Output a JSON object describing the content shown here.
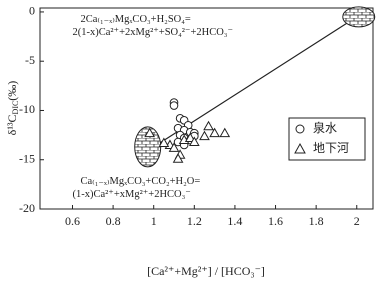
{
  "chart_data": {
    "type": "scatter",
    "xlabel": "[Ca²⁺+Mg²⁺] / [HCO₃⁻]",
    "ylabel": {
      "main": "δ¹³C",
      "sub": "DIC",
      "unit": "(‰)"
    },
    "xlim": [
      0.44,
      2.08
    ],
    "ylim": [
      -20,
      0.4
    ],
    "xticks": [
      0.6,
      0.8,
      1.0,
      1.2,
      1.4,
      1.6,
      1.8,
      2.0
    ],
    "yticks": [
      0,
      -5,
      -10,
      -15,
      -20
    ],
    "legend": "upper right",
    "series": [
      {
        "name": "泉水",
        "marker": "circle",
        "color": "#222",
        "x": [
          1.1,
          1.1,
          1.13,
          1.15,
          1.17,
          1.12,
          1.15,
          1.18,
          1.2,
          1.13,
          1.15,
          1.18,
          1.2,
          1.12,
          1.15
        ],
        "values": [
          -9.2,
          -9.5,
          -10.8,
          -11,
          -11.5,
          -11.8,
          -12,
          -12.2,
          -12.3,
          -12.5,
          -12.8,
          -13,
          -12.6,
          -13.2,
          -13.5
        ]
      },
      {
        "name": "地下河",
        "marker": "triangle",
        "color": "#222",
        "x": [
          0.98,
          1.08,
          1.1,
          1.13,
          1.12,
          1.15,
          1.18,
          1.2,
          1.27,
          1.3,
          1.35,
          1.25,
          1.05
        ],
        "values": [
          -12.3,
          -13.5,
          -13.8,
          -14.5,
          -14.9,
          -13,
          -12.8,
          -13.2,
          -11.6,
          -12.3,
          -12.3,
          -12.6,
          -13.3
        ]
      }
    ],
    "trend_line": {
      "x": [
        1.0,
        2.0
      ],
      "values": [
        -13.7,
        -0.5
      ]
    },
    "annotations": [
      {
        "x": 0.6,
        "y": -0.8,
        "lines": [
          "2Ca₍₁₋ₓ₎MgₓCO₃+H₂SO₄=",
          "2(1-x)Ca²⁺+2xMg²⁺+SO₄²⁻+2HCO₃⁻"
        ]
      },
      {
        "x": 0.6,
        "y": -17.2,
        "lines": [
          "Ca₍₁₋ₓ₎MgₓCO₃+CO₂+H₂O=",
          "(1-x)Ca²⁺+xMg²⁺+2HCO₃⁻"
        ]
      }
    ]
  }
}
